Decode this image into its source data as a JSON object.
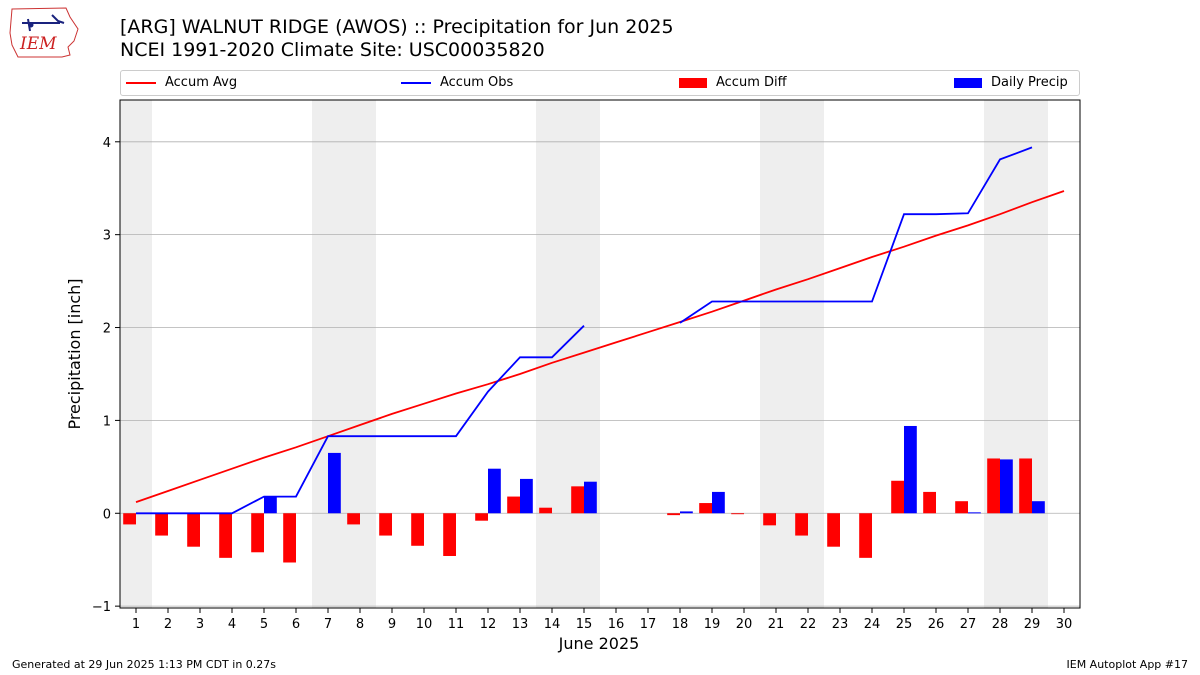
{
  "header": {
    "title": "[ARG] WALNUT RIDGE (AWOS) :: Precipitation for Jun 2025",
    "subtitle": "NCEI 1991-2020 Climate Site: USC00035820",
    "logo_text": "IEM"
  },
  "footer": {
    "left": "Generated at 29 Jun 2025 1:13 PM CDT in 0.27s",
    "right": "IEM Autoplot App #17"
  },
  "legend": {
    "accum_avg": "Accum Avg",
    "accum_obs": "Accum Obs",
    "accum_diff": "Accum Diff",
    "daily_precip": "Daily Precip"
  },
  "chart_data": {
    "type": "bar",
    "xlabel": "June 2025",
    "ylabel": "Precipitation [inch]",
    "ylim": [
      -1.02,
      4.45
    ],
    "xlim": [
      0.5,
      30.5
    ],
    "yticks": [
      -1,
      0,
      1,
      2,
      3,
      4
    ],
    "xticks": [
      1,
      2,
      3,
      4,
      5,
      6,
      7,
      8,
      9,
      10,
      11,
      12,
      13,
      14,
      15,
      16,
      17,
      18,
      19,
      20,
      21,
      22,
      23,
      24,
      25,
      26,
      27,
      28,
      29,
      30
    ],
    "grid": "horizontal",
    "legend_position": "top",
    "weekend_shading_days": [
      1,
      7,
      8,
      14,
      15,
      21,
      22,
      28,
      29
    ],
    "colors": {
      "accum_avg": "#ff0000",
      "accum_obs": "#0000ff",
      "accum_diff": "#ff0000",
      "daily_precip": "#0000ff",
      "weekend": "#eeeeee",
      "grid": "#b0b0b0"
    },
    "days": [
      1,
      2,
      3,
      4,
      5,
      6,
      7,
      8,
      9,
      10,
      11,
      12,
      13,
      14,
      15,
      16,
      17,
      18,
      19,
      20,
      21,
      22,
      23,
      24,
      25,
      26,
      27,
      28,
      29,
      30
    ],
    "series": [
      {
        "name": "Accum Avg",
        "kind": "line",
        "values": [
          0.12,
          0.24,
          0.36,
          0.48,
          0.6,
          0.71,
          0.83,
          0.95,
          1.07,
          1.18,
          1.29,
          1.39,
          1.5,
          1.62,
          1.73,
          1.84,
          1.95,
          2.06,
          2.17,
          2.29,
          2.41,
          2.52,
          2.64,
          2.76,
          2.87,
          2.99,
          3.1,
          3.22,
          3.35,
          3.47
        ]
      },
      {
        "name": "Accum Obs",
        "kind": "line",
        "values": [
          0.0,
          0.0,
          0.0,
          0.0,
          0.18,
          0.18,
          0.83,
          0.83,
          0.83,
          0.83,
          0.83,
          1.31,
          1.68,
          1.68,
          2.02,
          null,
          null,
          2.05,
          2.28,
          2.28,
          2.28,
          2.28,
          2.28,
          2.28,
          3.22,
          3.22,
          3.23,
          3.81,
          3.94,
          null
        ]
      },
      {
        "name": "Accum Diff",
        "kind": "bar",
        "values": [
          -0.12,
          -0.24,
          -0.36,
          -0.48,
          -0.42,
          -0.53,
          0.0,
          -0.12,
          -0.24,
          -0.35,
          -0.46,
          -0.08,
          0.18,
          0.06,
          0.29,
          null,
          null,
          -0.02,
          0.11,
          -0.01,
          -0.13,
          -0.24,
          -0.36,
          -0.48,
          0.35,
          0.23,
          0.13,
          0.59,
          0.59,
          null
        ]
      },
      {
        "name": "Daily Precip",
        "kind": "bar",
        "values": [
          0.0,
          0.0,
          0.0,
          0.0,
          0.18,
          0.0,
          0.65,
          0.0,
          0.0,
          0.0,
          0.0,
          0.48,
          0.37,
          0.0,
          0.34,
          null,
          null,
          0.02,
          0.23,
          0.0,
          0.0,
          0.0,
          0.0,
          0.0,
          0.94,
          0.0,
          0.01,
          0.58,
          0.13,
          null
        ]
      }
    ]
  }
}
